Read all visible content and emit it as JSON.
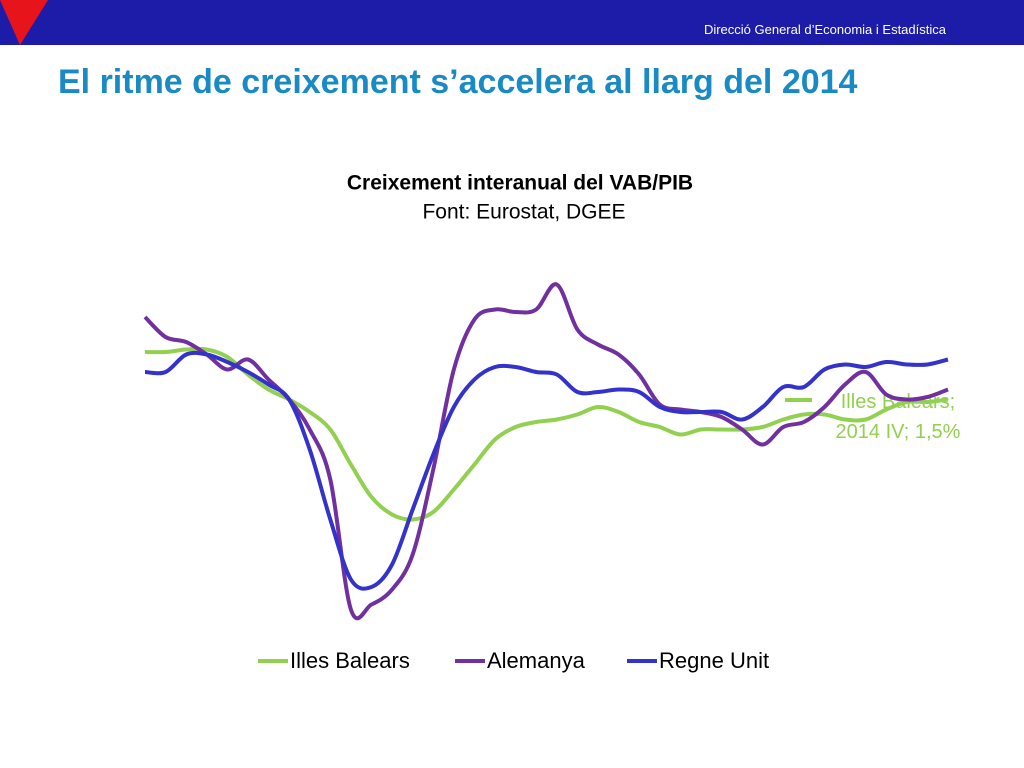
{
  "header": {
    "org": "Direcció General d’Economia i Estadística",
    "title": "El ritme de creixement s’accelera al llarg del 2014"
  },
  "chart_data": {
    "type": "line",
    "title": "Creixement interanual del VAB/PIB",
    "subtitle": "Font: Eurostat, DGEE",
    "categories": [
      null,
      null,
      null,
      null,
      null,
      null,
      null,
      null,
      null,
      null,
      null,
      null,
      null,
      null,
      null,
      null,
      null,
      null,
      null,
      null,
      null,
      null,
      null,
      null,
      null,
      null,
      null,
      null,
      null,
      null,
      null,
      null,
      null,
      null,
      null,
      null,
      null,
      null,
      null,
      null
    ],
    "ylim": [
      -8,
      8
    ],
    "legend": "bottom",
    "series": [
      {
        "name": "Illes Balears",
        "color": "#92d050",
        "values": [
          3.4,
          3.4,
          3.5,
          3.5,
          3.2,
          2.5,
          1.9,
          1.5,
          1.0,
          0.3,
          -1.1,
          -2.4,
          -3.1,
          -3.3,
          -3.0,
          -2.1,
          -1.1,
          -0.1,
          0.4,
          0.6,
          0.7,
          0.9,
          1.2,
          1.0,
          0.6,
          0.4,
          0.1,
          0.3,
          0.3,
          0.3,
          0.4,
          0.7,
          0.9,
          0.9,
          0.7,
          0.7,
          1.1,
          1.4,
          1.4,
          1.5
        ],
        "value_labels": [
          null,
          null,
          null,
          null,
          null,
          null,
          null,
          null,
          null,
          null,
          null,
          null,
          null,
          null,
          null,
          null,
          null,
          null,
          null,
          null,
          null,
          null,
          null,
          null,
          null,
          null,
          null,
          null,
          null,
          null,
          null,
          null,
          null,
          null,
          null,
          null,
          null,
          null,
          null,
          "Illes Balears; 2014 IV; 1,5%"
        ]
      },
      {
        "name": "Alemanya",
        "color": "#7030a0",
        "values": [
          4.8,
          4.0,
          3.8,
          3.3,
          2.7,
          3.1,
          2.3,
          1.5,
          0.3,
          -1.7,
          -6.9,
          -6.7,
          -6.1,
          -4.7,
          -1.3,
          2.7,
          4.7,
          5.1,
          5.0,
          5.1,
          6.1,
          4.3,
          3.7,
          3.3,
          2.5,
          1.3,
          1.1,
          1.0,
          0.8,
          0.3,
          -0.3,
          0.4,
          0.6,
          1.2,
          2.1,
          2.6,
          1.7,
          1.5,
          1.6,
          1.9
        ]
      },
      {
        "name": "Regne Unit",
        "color": "#3333cc",
        "values": [
          2.6,
          2.6,
          3.3,
          3.3,
          3.0,
          2.6,
          2.1,
          1.5,
          -0.5,
          -3.3,
          -5.7,
          -6.0,
          -5.1,
          -2.9,
          -0.7,
          1.2,
          2.3,
          2.8,
          2.8,
          2.6,
          2.5,
          1.8,
          1.8,
          1.9,
          1.8,
          1.2,
          1.0,
          1.0,
          1.0,
          0.7,
          1.2,
          2.0,
          2.0,
          2.7,
          2.9,
          2.8,
          3.0,
          2.9,
          2.9,
          3.1
        ]
      }
    ]
  }
}
